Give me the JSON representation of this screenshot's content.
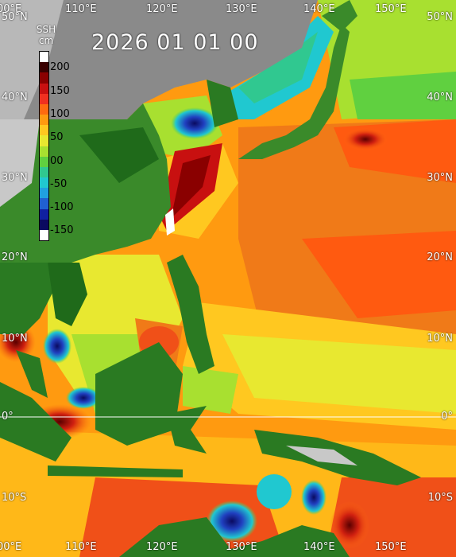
{
  "map": {
    "title": "2026 01 01 00",
    "colorbar": {
      "title_line1": "SSH",
      "title_line2": "cm",
      "ticks": [
        "200",
        "150",
        "100",
        "50",
        "00",
        "-50",
        "-100",
        "-150"
      ],
      "colors": [
        "#ffffff",
        "#3a0000",
        "#8a0000",
        "#c81010",
        "#f03020",
        "#ff6a10",
        "#ff9a10",
        "#ffc820",
        "#e8e830",
        "#a8e030",
        "#60d040",
        "#30c890",
        "#20c8d0",
        "#20a0e0",
        "#2060d0",
        "#1020a0",
        "#0a0a60",
        "#ffffff"
      ]
    },
    "lon_labels_top": [
      "00°E",
      "110°E",
      "120°E",
      "130°E",
      "140°E",
      "150°E"
    ],
    "lon_labels_bottom": [
      "00°E",
      "110°E",
      "120°E",
      "130°E",
      "140°E",
      "150°E"
    ],
    "lat_labels_left": [
      "50°N",
      "40°N",
      "30°N",
      "20°N",
      "10°N",
      "0°",
      "10°S"
    ],
    "lat_labels_right": [
      "50°N",
      "40°N",
      "30°N",
      "20°N",
      "10°N",
      "0°",
      "10°S"
    ]
  }
}
